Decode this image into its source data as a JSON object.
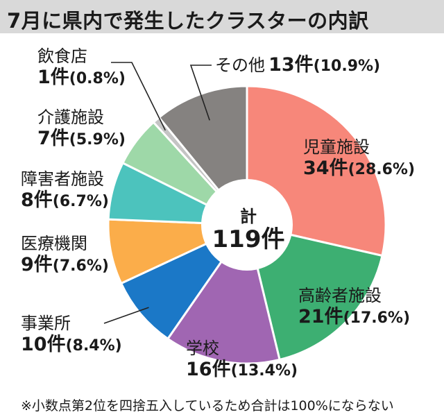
{
  "title": "7月に県内で発生したクラスターの内訳",
  "center": {
    "label": "計",
    "total": "119件"
  },
  "footnote": "※小数点第2位を四捨五入しているため合計は100%にならない",
  "chart_data": {
    "type": "pie",
    "total": 119,
    "slices": [
      {
        "name": "児童施設",
        "value": 34,
        "count_label": "34件",
        "pct_label": "(28.6%)",
        "color": "#f7877a"
      },
      {
        "name": "高齢者施設",
        "value": 21,
        "count_label": "21件",
        "pct_label": "(17.6%)",
        "color": "#3daf72"
      },
      {
        "name": "学校",
        "value": 16,
        "count_label": "16件",
        "pct_label": "(13.4%)",
        "color": "#a066b2"
      },
      {
        "name": "事業所",
        "value": 10,
        "count_label": "10件",
        "pct_label": "(8.4%)",
        "color": "#1b78c7"
      },
      {
        "name": "医療機関",
        "value": 9,
        "count_label": "9件",
        "pct_label": "(7.6%)",
        "color": "#fbad4a"
      },
      {
        "name": "障害者施設",
        "value": 8,
        "count_label": "8件",
        "pct_label": "(6.7%)",
        "color": "#4cc3bd"
      },
      {
        "name": "介護施設",
        "value": 7,
        "count_label": "7件",
        "pct_label": "(5.9%)",
        "color": "#9ed8a8"
      },
      {
        "name": "飲食店",
        "value": 1,
        "count_label": "1件",
        "pct_label": "(0.8%)",
        "color": "#c4c4c4"
      },
      {
        "name": "その他",
        "value": 13,
        "count_label": "13件",
        "pct_label": "(10.9%)",
        "color": "#858280"
      }
    ]
  }
}
